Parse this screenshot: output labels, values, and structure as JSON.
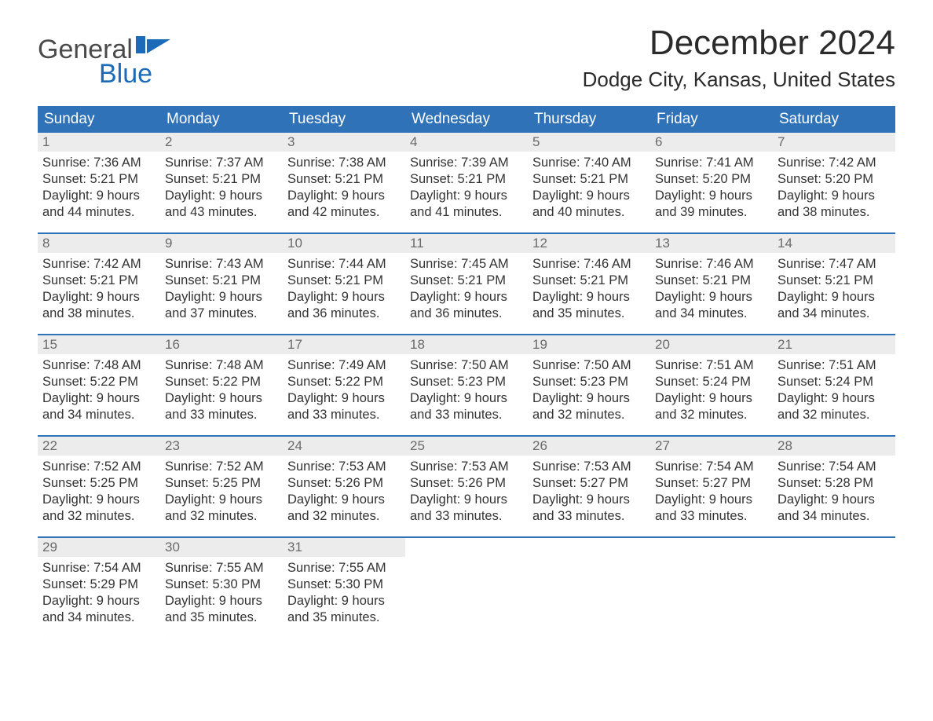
{
  "brand": {
    "word1": "General",
    "word2": "Blue"
  },
  "header": {
    "title": "December 2024",
    "subtitle": "Dodge City, Kansas, United States"
  },
  "colors": {
    "header_blue": "#2f72b8",
    "logo_blue": "#1b6bb8",
    "daynum_grey": "#ececec",
    "text": "#333333",
    "background": "#ffffff"
  },
  "calendar": {
    "type": "table",
    "day_labels": [
      "Sunday",
      "Monday",
      "Tuesday",
      "Wednesday",
      "Thursday",
      "Friday",
      "Saturday"
    ],
    "weeks": [
      [
        {
          "n": "1",
          "sunrise": "Sunrise: 7:36 AM",
          "sunset": "Sunset: 5:21 PM",
          "day1": "Daylight: 9 hours",
          "day2": "and 44 minutes."
        },
        {
          "n": "2",
          "sunrise": "Sunrise: 7:37 AM",
          "sunset": "Sunset: 5:21 PM",
          "day1": "Daylight: 9 hours",
          "day2": "and 43 minutes."
        },
        {
          "n": "3",
          "sunrise": "Sunrise: 7:38 AM",
          "sunset": "Sunset: 5:21 PM",
          "day1": "Daylight: 9 hours",
          "day2": "and 42 minutes."
        },
        {
          "n": "4",
          "sunrise": "Sunrise: 7:39 AM",
          "sunset": "Sunset: 5:21 PM",
          "day1": "Daylight: 9 hours",
          "day2": "and 41 minutes."
        },
        {
          "n": "5",
          "sunrise": "Sunrise: 7:40 AM",
          "sunset": "Sunset: 5:21 PM",
          "day1": "Daylight: 9 hours",
          "day2": "and 40 minutes."
        },
        {
          "n": "6",
          "sunrise": "Sunrise: 7:41 AM",
          "sunset": "Sunset: 5:20 PM",
          "day1": "Daylight: 9 hours",
          "day2": "and 39 minutes."
        },
        {
          "n": "7",
          "sunrise": "Sunrise: 7:42 AM",
          "sunset": "Sunset: 5:20 PM",
          "day1": "Daylight: 9 hours",
          "day2": "and 38 minutes."
        }
      ],
      [
        {
          "n": "8",
          "sunrise": "Sunrise: 7:42 AM",
          "sunset": "Sunset: 5:21 PM",
          "day1": "Daylight: 9 hours",
          "day2": "and 38 minutes."
        },
        {
          "n": "9",
          "sunrise": "Sunrise: 7:43 AM",
          "sunset": "Sunset: 5:21 PM",
          "day1": "Daylight: 9 hours",
          "day2": "and 37 minutes."
        },
        {
          "n": "10",
          "sunrise": "Sunrise: 7:44 AM",
          "sunset": "Sunset: 5:21 PM",
          "day1": "Daylight: 9 hours",
          "day2": "and 36 minutes."
        },
        {
          "n": "11",
          "sunrise": "Sunrise: 7:45 AM",
          "sunset": "Sunset: 5:21 PM",
          "day1": "Daylight: 9 hours",
          "day2": "and 36 minutes."
        },
        {
          "n": "12",
          "sunrise": "Sunrise: 7:46 AM",
          "sunset": "Sunset: 5:21 PM",
          "day1": "Daylight: 9 hours",
          "day2": "and 35 minutes."
        },
        {
          "n": "13",
          "sunrise": "Sunrise: 7:46 AM",
          "sunset": "Sunset: 5:21 PM",
          "day1": "Daylight: 9 hours",
          "day2": "and 34 minutes."
        },
        {
          "n": "14",
          "sunrise": "Sunrise: 7:47 AM",
          "sunset": "Sunset: 5:21 PM",
          "day1": "Daylight: 9 hours",
          "day2": "and 34 minutes."
        }
      ],
      [
        {
          "n": "15",
          "sunrise": "Sunrise: 7:48 AM",
          "sunset": "Sunset: 5:22 PM",
          "day1": "Daylight: 9 hours",
          "day2": "and 34 minutes."
        },
        {
          "n": "16",
          "sunrise": "Sunrise: 7:48 AM",
          "sunset": "Sunset: 5:22 PM",
          "day1": "Daylight: 9 hours",
          "day2": "and 33 minutes."
        },
        {
          "n": "17",
          "sunrise": "Sunrise: 7:49 AM",
          "sunset": "Sunset: 5:22 PM",
          "day1": "Daylight: 9 hours",
          "day2": "and 33 minutes."
        },
        {
          "n": "18",
          "sunrise": "Sunrise: 7:50 AM",
          "sunset": "Sunset: 5:23 PM",
          "day1": "Daylight: 9 hours",
          "day2": "and 33 minutes."
        },
        {
          "n": "19",
          "sunrise": "Sunrise: 7:50 AM",
          "sunset": "Sunset: 5:23 PM",
          "day1": "Daylight: 9 hours",
          "day2": "and 32 minutes."
        },
        {
          "n": "20",
          "sunrise": "Sunrise: 7:51 AM",
          "sunset": "Sunset: 5:24 PM",
          "day1": "Daylight: 9 hours",
          "day2": "and 32 minutes."
        },
        {
          "n": "21",
          "sunrise": "Sunrise: 7:51 AM",
          "sunset": "Sunset: 5:24 PM",
          "day1": "Daylight: 9 hours",
          "day2": "and 32 minutes."
        }
      ],
      [
        {
          "n": "22",
          "sunrise": "Sunrise: 7:52 AM",
          "sunset": "Sunset: 5:25 PM",
          "day1": "Daylight: 9 hours",
          "day2": "and 32 minutes."
        },
        {
          "n": "23",
          "sunrise": "Sunrise: 7:52 AM",
          "sunset": "Sunset: 5:25 PM",
          "day1": "Daylight: 9 hours",
          "day2": "and 32 minutes."
        },
        {
          "n": "24",
          "sunrise": "Sunrise: 7:53 AM",
          "sunset": "Sunset: 5:26 PM",
          "day1": "Daylight: 9 hours",
          "day2": "and 32 minutes."
        },
        {
          "n": "25",
          "sunrise": "Sunrise: 7:53 AM",
          "sunset": "Sunset: 5:26 PM",
          "day1": "Daylight: 9 hours",
          "day2": "and 33 minutes."
        },
        {
          "n": "26",
          "sunrise": "Sunrise: 7:53 AM",
          "sunset": "Sunset: 5:27 PM",
          "day1": "Daylight: 9 hours",
          "day2": "and 33 minutes."
        },
        {
          "n": "27",
          "sunrise": "Sunrise: 7:54 AM",
          "sunset": "Sunset: 5:27 PM",
          "day1": "Daylight: 9 hours",
          "day2": "and 33 minutes."
        },
        {
          "n": "28",
          "sunrise": "Sunrise: 7:54 AM",
          "sunset": "Sunset: 5:28 PM",
          "day1": "Daylight: 9 hours",
          "day2": "and 34 minutes."
        }
      ],
      [
        {
          "n": "29",
          "sunrise": "Sunrise: 7:54 AM",
          "sunset": "Sunset: 5:29 PM",
          "day1": "Daylight: 9 hours",
          "day2": "and 34 minutes."
        },
        {
          "n": "30",
          "sunrise": "Sunrise: 7:55 AM",
          "sunset": "Sunset: 5:30 PM",
          "day1": "Daylight: 9 hours",
          "day2": "and 35 minutes."
        },
        {
          "n": "31",
          "sunrise": "Sunrise: 7:55 AM",
          "sunset": "Sunset: 5:30 PM",
          "day1": "Daylight: 9 hours",
          "day2": "and 35 minutes."
        },
        null,
        null,
        null,
        null
      ]
    ]
  }
}
